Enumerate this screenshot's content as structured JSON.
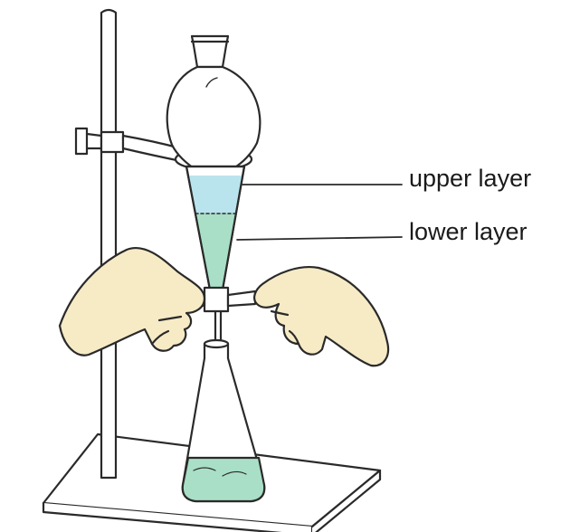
{
  "labels": {
    "upper": "upper layer",
    "lower": "lower layer"
  },
  "colors": {
    "upper_liquid": "#b9e4ee",
    "lower_liquid": "#a9dfc7",
    "skin": "#f7ebc6",
    "outline": "#2a2a2a",
    "glass": "#ffffff"
  }
}
